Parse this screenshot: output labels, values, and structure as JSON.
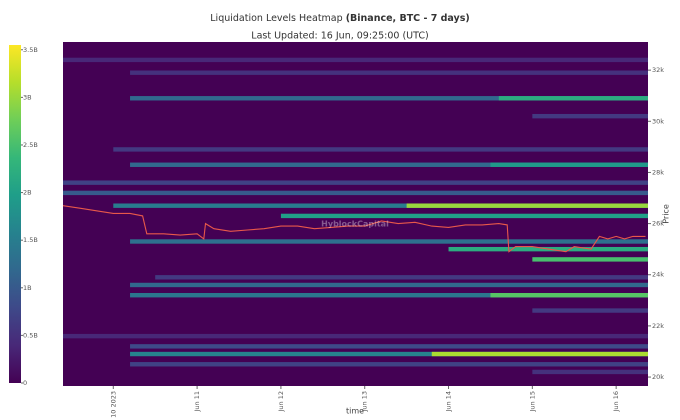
{
  "chart_data": {
    "type": "heatmap",
    "title": "Liquidation Levels Heatmap",
    "title_emphasis": "(Binance, BTC - 7 days)",
    "subtitle": "Last Updated: 16 Jun, 09:25:00 (UTC)",
    "watermark": "HyblockCapital",
    "x_label": "time",
    "y_label": "Price",
    "colormap": "viridis",
    "clim": [
      0,
      3.55
    ],
    "colorbar_ticks": [
      0,
      {
        "value": 0.5,
        "label": "0.5B"
      },
      {
        "value": 1,
        "label": "1B"
      },
      {
        "value": 1.5,
        "label": "1.5B"
      },
      {
        "value": 2,
        "label": "2B"
      },
      {
        "value": 2.5,
        "label": "2.5B"
      },
      {
        "value": 3,
        "label": "3B"
      },
      {
        "value": 3.5,
        "label": "3.5B"
      }
    ],
    "xlim": [
      9.4,
      16.38
    ],
    "xticks": [
      {
        "value": 10,
        "label": "Jun 10 2023"
      },
      {
        "value": 11,
        "label": "Jun 11"
      },
      {
        "value": 12,
        "label": "Jun 12"
      },
      {
        "value": 13,
        "label": "Jun 13"
      },
      {
        "value": 14,
        "label": "Jun 14"
      },
      {
        "value": 15,
        "label": "Jun 15"
      },
      {
        "value": 16,
        "label": "Jun 16"
      }
    ],
    "ylim": [
      19650,
      33100
    ],
    "yticks": [
      {
        "value": 20000,
        "label": "20k"
      },
      {
        "value": 22000,
        "label": "22k"
      },
      {
        "value": 24000,
        "label": "24k"
      },
      {
        "value": 26000,
        "label": "26k"
      },
      {
        "value": 28000,
        "label": "28k"
      },
      {
        "value": 30000,
        "label": "30k"
      },
      {
        "value": 32000,
        "label": "32k"
      }
    ],
    "bands": {
      "price": [
        32400,
        31900,
        30900,
        30900,
        30200,
        28900,
        28300,
        28300,
        27600,
        27200,
        26700,
        26700,
        26300,
        25300,
        25000,
        24600,
        23900,
        23600,
        23200,
        23200,
        22600,
        21600,
        21200,
        20900,
        20900,
        20500,
        20200
      ],
      "start": [
        9.4,
        10.2,
        10.2,
        14.6,
        15,
        10.0,
        10.2,
        14.5,
        9.4,
        9.4,
        10.0,
        13.5,
        12.0,
        10.2,
        14.0,
        15.0,
        10.5,
        10.2,
        10.2,
        14.5,
        15.0,
        9.4,
        10.2,
        10.2,
        13.8,
        10.2,
        15.0
      ],
      "values": [
        0.4,
        0.5,
        1.2,
        2.2,
        0.6,
        0.6,
        1.2,
        1.9,
        0.7,
        1.0,
        1.5,
        3.0,
        2.0,
        1.3,
        2.2,
        2.5,
        0.6,
        1.2,
        1.4,
        2.6,
        0.6,
        0.4,
        0.8,
        1.6,
        3.1,
        0.7,
        0.5
      ]
    },
    "price_line": {
      "color": "#e8584a",
      "x": [
        9.4,
        9.6,
        9.8,
        10.0,
        10.2,
        10.35,
        10.4,
        10.6,
        10.8,
        11.0,
        11.08,
        11.1,
        11.2,
        11.4,
        11.6,
        11.8,
        12.0,
        12.2,
        12.4,
        12.6,
        12.8,
        13.0,
        13.2,
        13.4,
        13.6,
        13.8,
        14.0,
        14.2,
        14.4,
        14.6,
        14.7,
        14.72,
        14.8,
        15.0,
        15.2,
        15.4,
        15.5,
        15.7,
        15.8,
        15.9,
        16.0,
        16.1,
        16.2,
        16.35
      ],
      "values": [
        26700,
        26600,
        26500,
        26400,
        26400,
        26300,
        25600,
        25600,
        25550,
        25600,
        25400,
        26000,
        25800,
        25700,
        25750,
        25800,
        25900,
        25900,
        25800,
        25850,
        25900,
        25900,
        26100,
        26000,
        26050,
        25900,
        25850,
        25950,
        25950,
        26000,
        25950,
        24900,
        25100,
        25100,
        25000,
        24900,
        25100,
        25000,
        25500,
        25400,
        25500,
        25400,
        25500,
        25500
      ]
    }
  }
}
